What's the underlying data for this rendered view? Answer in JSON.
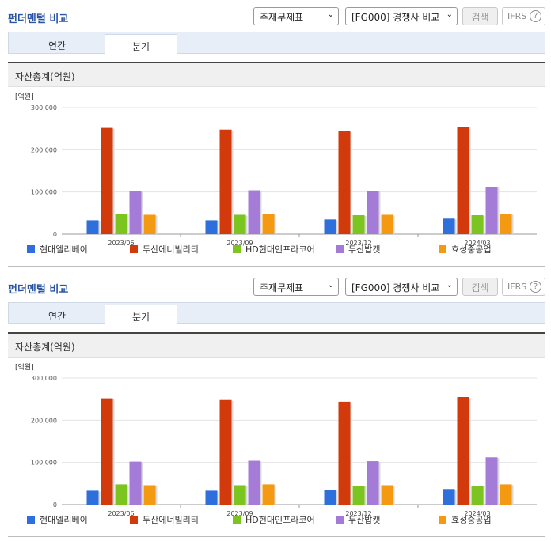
{
  "header": {
    "title": "펀더멘털 비교",
    "statement_select": "주재무제표",
    "compare_select": "[FG000] 경쟁사 비교",
    "search_label": "검색",
    "ifrs_label": "IFRS",
    "help_glyph": "?",
    "chevron_glyph": "⌄"
  },
  "tabs": [
    {
      "label": "연간",
      "active": false
    },
    {
      "label": "분기",
      "active": true
    }
  ],
  "section": {
    "title": "자산총계(억원)"
  },
  "chart_data": {
    "type": "bar",
    "unit_label": "[억원]",
    "categories": [
      "2023/06",
      "2023/09",
      "2023/12",
      "2024/03"
    ],
    "yticks": [
      0,
      100000,
      200000,
      300000
    ],
    "ytick_labels": [
      "0",
      "100,000",
      "200,000",
      "300,000"
    ],
    "ylim": [
      0,
      300000
    ],
    "grid": true,
    "legend_position": "bottom",
    "series": [
      {
        "name": "현대엘리베이",
        "color": "#2e6fdb",
        "values": [
          33000,
          33000,
          35000,
          37000
        ]
      },
      {
        "name": "두산에너빌리티",
        "color": "#d23a0c",
        "values": [
          252000,
          248000,
          244000,
          255000
        ]
      },
      {
        "name": "HD현대인프라코어",
        "color": "#7cc520",
        "values": [
          48000,
          46000,
          45000,
          45000
        ]
      },
      {
        "name": "두산밥캣",
        "color": "#a47bd6",
        "values": [
          102000,
          104000,
          103000,
          112000
        ]
      },
      {
        "name": "효성중공업",
        "color": "#f39a12",
        "values": [
          46000,
          48000,
          46000,
          48000
        ]
      }
    ]
  }
}
